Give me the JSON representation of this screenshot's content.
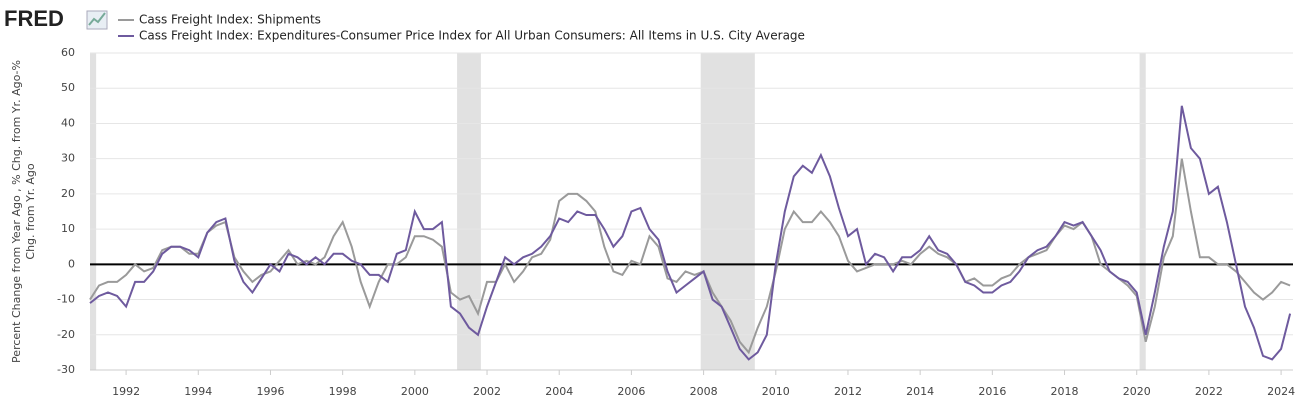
{
  "brand": "FRED",
  "chart_data": {
    "type": "line",
    "y_label": "Percent Change from Year Ago , % Chg. from Yr. Ago-% Chg. from Yr. Ago",
    "x": [
      1991,
      1991.25,
      1991.5,
      1991.75,
      1992,
      1992.25,
      1992.5,
      1992.75,
      1993,
      1993.25,
      1993.5,
      1993.75,
      1994,
      1994.25,
      1994.5,
      1994.75,
      1995,
      1995.25,
      1995.5,
      1995.75,
      1996,
      1996.25,
      1996.5,
      1996.75,
      1997,
      1997.25,
      1997.5,
      1997.75,
      1998,
      1998.25,
      1998.5,
      1998.75,
      1999,
      1999.25,
      1999.5,
      1999.75,
      2000,
      2000.25,
      2000.5,
      2000.75,
      2001,
      2001.25,
      2001.5,
      2001.75,
      2002,
      2002.25,
      2002.5,
      2002.75,
      2003,
      2003.25,
      2003.5,
      2003.75,
      2004,
      2004.25,
      2004.5,
      2004.75,
      2005,
      2005.25,
      2005.5,
      2005.75,
      2006,
      2006.25,
      2006.5,
      2006.75,
      2007,
      2007.25,
      2007.5,
      2007.75,
      2008,
      2008.25,
      2008.5,
      2008.75,
      2009,
      2009.25,
      2009.5,
      2009.75,
      2010,
      2010.25,
      2010.5,
      2010.75,
      2011,
      2011.25,
      2011.5,
      2011.75,
      2012,
      2012.25,
      2012.5,
      2012.75,
      2013,
      2013.25,
      2013.5,
      2013.75,
      2014,
      2014.25,
      2014.5,
      2014.75,
      2015,
      2015.25,
      2015.5,
      2015.75,
      2016,
      2016.25,
      2016.5,
      2016.75,
      2017,
      2017.25,
      2017.5,
      2017.75,
      2018,
      2018.25,
      2018.5,
      2018.75,
      2019,
      2019.25,
      2019.5,
      2019.75,
      2020,
      2020.25,
      2020.5,
      2020.75,
      2021,
      2021.25,
      2021.5,
      2021.75,
      2022,
      2022.25,
      2022.5,
      2022.75,
      2023,
      2023.25,
      2023.5,
      2023.75,
      2024,
      2024.25
    ],
    "series": [
      {
        "name": "Cass Freight Index: Shipments",
        "color": "#9a9a9a",
        "values": [
          -10,
          -6,
          -5,
          -5,
          -3,
          0,
          -2,
          -1,
          4,
          5,
          5,
          3,
          3,
          9,
          11,
          12,
          2,
          -2,
          -5,
          -3,
          -2,
          1,
          4,
          0,
          1,
          0,
          2,
          8,
          12,
          5,
          -5,
          -12,
          -5,
          0,
          0,
          2,
          8,
          8,
          7,
          5,
          -8,
          -10,
          -9,
          -14,
          -5,
          -5,
          0,
          -5,
          -2,
          2,
          3,
          7,
          18,
          20,
          20,
          18,
          15,
          5,
          -2,
          -3,
          1,
          0,
          8,
          5,
          -4,
          -5,
          -2,
          -3,
          -2,
          -8,
          -12,
          -16,
          -22,
          -25,
          -18,
          -12,
          -2,
          10,
          15,
          12,
          12,
          15,
          12,
          8,
          1,
          -2,
          -1,
          0,
          0,
          0,
          1,
          0,
          3,
          5,
          3,
          2,
          0,
          -5,
          -4,
          -6,
          -6,
          -4,
          -3,
          0,
          2,
          3,
          4,
          8,
          11,
          10,
          12,
          8,
          0,
          -2,
          -4,
          -6,
          -9,
          -22,
          -12,
          2,
          8,
          30,
          15,
          2,
          2,
          0,
          0,
          -2,
          -5,
          -8,
          -10,
          -8,
          -5,
          -6
        ]
      },
      {
        "name": "Cass Freight Index: Expenditures-Consumer Price Index for All Urban Consumers: All Items in U.S. City Average",
        "color": "#6e5a9e",
        "values": [
          -11,
          -9,
          -8,
          -9,
          -12,
          -5,
          -5,
          -2,
          3,
          5,
          5,
          4,
          2,
          9,
          12,
          13,
          1,
          -5,
          -8,
          -4,
          0,
          -2,
          3,
          2,
          0,
          2,
          0,
          3,
          3,
          1,
          0,
          -3,
          -3,
          -5,
          3,
          4,
          15,
          10,
          10,
          12,
          -12,
          -14,
          -18,
          -20,
          -12,
          -5,
          2,
          0,
          2,
          3,
          5,
          8,
          13,
          12,
          15,
          14,
          14,
          10,
          5,
          8,
          15,
          16,
          10,
          7,
          -2,
          -8,
          -6,
          -4,
          -2,
          -10,
          -12,
          -18,
          -24,
          -27,
          -25,
          -20,
          0,
          15,
          25,
          28,
          26,
          31,
          25,
          16,
          8,
          10,
          0,
          3,
          2,
          -2,
          2,
          2,
          4,
          8,
          4,
          3,
          0,
          -5,
          -6,
          -8,
          -8,
          -6,
          -5,
          -2,
          2,
          4,
          5,
          8,
          12,
          11,
          12,
          8,
          4,
          -2,
          -4,
          -5,
          -8,
          -20,
          -8,
          5,
          15,
          45,
          33,
          30,
          20,
          22,
          12,
          0,
          -12,
          -18,
          -26,
          -27,
          -24,
          -14
        ]
      }
    ],
    "recessions": [
      [
        1991,
        1991.17
      ],
      [
        2001.17,
        2001.83
      ],
      [
        2007.92,
        2009.42
      ],
      [
        2020.08,
        2020.25
      ]
    ],
    "xlim": [
      1991,
      2024.33
    ],
    "xticks": [
      1992,
      1994,
      1996,
      1998,
      2000,
      2002,
      2004,
      2006,
      2008,
      2010,
      2012,
      2014,
      2016,
      2018,
      2020,
      2022,
      2024
    ],
    "ylim": [
      -30,
      60
    ],
    "yticks": [
      -30,
      -20,
      -10,
      0,
      10,
      20,
      30,
      40,
      50,
      60
    ],
    "grid": true
  }
}
